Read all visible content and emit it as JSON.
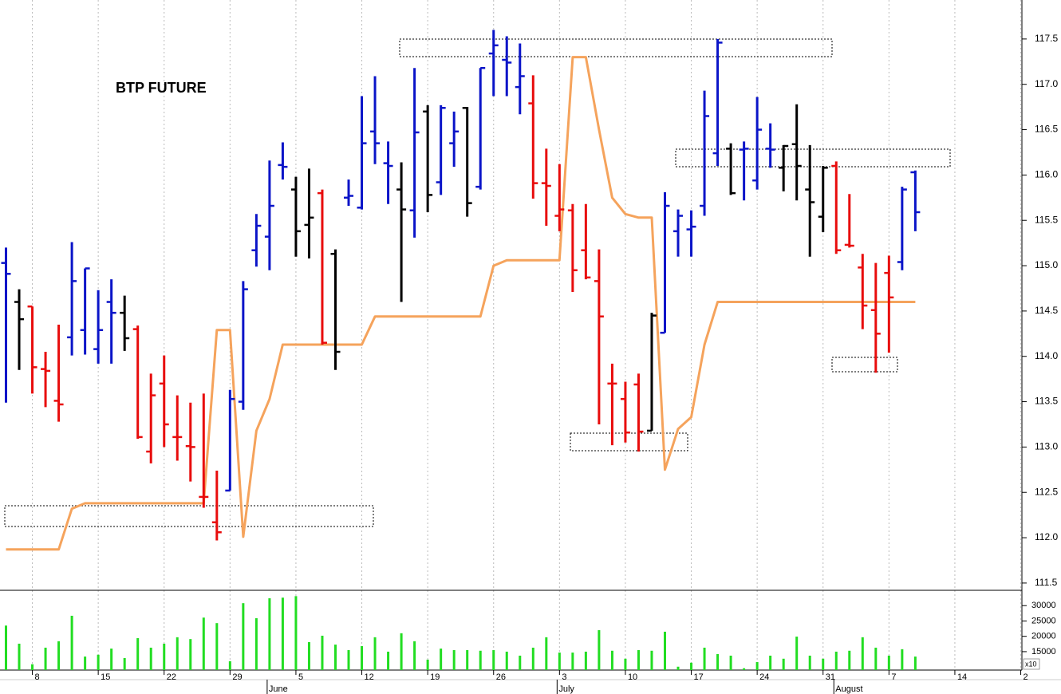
{
  "chart_data": {
    "type": "ohlc",
    "title": "BTP FUTURE",
    "categories": [
      null,
      null,
      "8",
      null,
      null,
      null,
      null,
      "15",
      null,
      null,
      null,
      null,
      "22",
      null,
      null,
      null,
      null,
      "29",
      null,
      null,
      null,
      null,
      "5",
      null,
      null,
      null,
      null,
      "12",
      null,
      null,
      null,
      null,
      "19",
      null,
      null,
      null,
      null,
      "26",
      null,
      null,
      null,
      null,
      "3",
      null,
      null,
      null,
      null,
      "10",
      null,
      null,
      null,
      null,
      "17",
      null,
      null,
      null,
      null,
      "24",
      null,
      null,
      null,
      null,
      "31",
      null,
      null,
      null,
      null,
      "7",
      null,
      null,
      null,
      null,
      "14",
      null,
      null,
      null,
      null,
      "2"
    ],
    "months": [
      null,
      null,
      null,
      null,
      null,
      null,
      null,
      null,
      null,
      null,
      null,
      null,
      null,
      null,
      null,
      null,
      null,
      null,
      null,
      null,
      "June",
      null,
      null,
      null,
      null,
      null,
      null,
      null,
      null,
      null,
      null,
      null,
      null,
      null,
      null,
      null,
      null,
      null,
      null,
      null,
      null,
      null,
      "July",
      null,
      null,
      null,
      null,
      null,
      null,
      null,
      null,
      null,
      null,
      null,
      null,
      null,
      null,
      null,
      null,
      null,
      null,
      null,
      null,
      "August",
      null,
      null,
      null,
      null,
      null,
      null,
      null,
      null,
      null,
      null,
      null,
      null,
      null,
      null
    ],
    "ohlc": {
      "open": [
        115.03,
        114.6,
        114.55,
        113.86,
        113.51,
        114.21,
        114.29,
        114.08,
        114.6,
        114.48,
        114.3,
        112.95,
        113.7,
        113.11,
        113.01,
        112.45,
        112.17,
        112.52,
        113.5,
        115.17,
        115.32,
        116.11,
        115.84,
        115.45,
        115.8,
        115.13,
        115.75,
        115.64,
        116.48,
        116.13,
        115.84,
        115.61,
        116.7,
        115.92,
        116.35,
        116.74,
        115.87,
        117.34,
        117.27,
        116.97,
        116.79,
        115.91,
        115.55,
        115.61,
        115.17,
        114.83,
        113.7,
        113.53,
        113.69,
        113.18,
        114.26,
        115.38,
        115.4,
        115.66,
        116.24,
        116.29,
        116.28,
        115.94,
        116.29,
        116.08,
        116.34,
        115.84,
        115.54,
        116.1,
        115.23,
        114.98,
        114.51,
        114.92,
        115.04,
        116.03,
        null,
        null,
        null,
        null,
        null,
        null,
        null,
        null
      ],
      "high": [
        115.2,
        114.74,
        114.55,
        114.05,
        114.35,
        115.26,
        114.97,
        114.73,
        114.85,
        114.67,
        114.34,
        113.81,
        114.01,
        113.57,
        113.49,
        113.59,
        112.74,
        113.63,
        114.83,
        115.57,
        116.16,
        116.36,
        115.98,
        116.07,
        115.84,
        115.18,
        115.95,
        116.87,
        117.09,
        116.37,
        116.14,
        117.18,
        116.77,
        116.77,
        116.7,
        116.75,
        117.18,
        117.6,
        117.53,
        117.45,
        117.1,
        116.29,
        116.12,
        115.68,
        115.68,
        115.18,
        113.92,
        113.72,
        113.81,
        114.48,
        115.81,
        115.62,
        115.61,
        116.93,
        117.5,
        116.35,
        116.37,
        116.86,
        116.57,
        116.33,
        116.78,
        116.33,
        116.1,
        116.15,
        115.79,
        115.13,
        115.03,
        115.11,
        115.87,
        116.05,
        null,
        null,
        null,
        null,
        null,
        null,
        null,
        null
      ],
      "low": [
        113.49,
        113.85,
        113.59,
        113.44,
        113.28,
        114.01,
        114.02,
        113.92,
        113.92,
        114.06,
        113.09,
        112.82,
        113.0,
        112.85,
        112.62,
        112.33,
        111.97,
        112.52,
        113.41,
        114.99,
        114.95,
        115.95,
        115.1,
        115.08,
        114.13,
        113.85,
        115.66,
        115.62,
        116.12,
        115.68,
        114.6,
        115.31,
        115.59,
        115.78,
        116.09,
        115.54,
        115.84,
        116.87,
        116.87,
        116.67,
        115.74,
        115.44,
        115.38,
        114.71,
        114.85,
        113.25,
        113.02,
        113.05,
        112.95,
        113.18,
        114.26,
        115.1,
        115.1,
        115.55,
        116.1,
        115.78,
        115.72,
        115.84,
        116.08,
        115.82,
        115.72,
        115.1,
        115.37,
        115.13,
        115.2,
        114.3,
        113.82,
        114.04,
        114.95,
        115.38,
        null,
        null,
        null,
        null,
        null,
        null,
        null,
        null
      ],
      "close": [
        114.91,
        114.41,
        113.88,
        113.84,
        113.47,
        114.83,
        114.97,
        114.29,
        114.48,
        114.2,
        113.11,
        113.57,
        113.25,
        113.11,
        113.0,
        112.45,
        112.06,
        113.53,
        114.74,
        115.44,
        115.66,
        116.09,
        115.38,
        115.53,
        114.15,
        114.05,
        115.77,
        116.35,
        116.35,
        116.1,
        115.62,
        116.47,
        115.78,
        116.74,
        116.48,
        115.69,
        117.18,
        117.43,
        117.24,
        117.09,
        115.91,
        115.88,
        115.62,
        114.95,
        114.87,
        114.44,
        113.7,
        113.16,
        113.17,
        114.45,
        115.66,
        115.55,
        115.43,
        116.65,
        117.46,
        115.8,
        116.29,
        116.5,
        116.28,
        116.32,
        116.1,
        115.7,
        116.08,
        115.17,
        115.22,
        114.56,
        114.25,
        114.65,
        115.84,
        115.59,
        null,
        null,
        null,
        null,
        null,
        null,
        null,
        null
      ],
      "colors": [
        "#0a14c8",
        "#000000",
        "#e80c0c",
        "#e80c0c",
        "#e80c0c",
        "#0a14c8",
        "#0a14c8",
        "#0a14c8",
        "#0a14c8",
        "#000000",
        "#e80c0c",
        "#e80c0c",
        "#e80c0c",
        "#e80c0c",
        "#e80c0c",
        "#e80c0c",
        "#e80c0c",
        "#0a14c8",
        "#0a14c8",
        "#0a14c8",
        "#0a14c8",
        "#0a14c8",
        "#000000",
        "#000000",
        "#e80c0c",
        "#000000",
        "#0a14c8",
        "#0a14c8",
        "#0a14c8",
        "#0a14c8",
        "#000000",
        "#0a14c8",
        "#000000",
        "#0a14c8",
        "#0a14c8",
        "#000000",
        "#0a14c8",
        "#0a14c8",
        "#0a14c8",
        "#0a14c8",
        "#e80c0c",
        "#e80c0c",
        "#e80c0c",
        "#e80c0c",
        "#e80c0c",
        "#e80c0c",
        "#e80c0c",
        "#e80c0c",
        "#e80c0c",
        "#000000",
        "#0a14c8",
        "#0a14c8",
        "#0a14c8",
        "#0a14c8",
        "#0a14c8",
        "#000000",
        "#0a14c8",
        "#0a14c8",
        "#0a14c8",
        "#000000",
        "#000000",
        "#000000",
        "#000000",
        "#e80c0c",
        "#e80c0c",
        "#e80c0c",
        "#e80c0c",
        "#e80c0c",
        "#0a14c8",
        "#0a14c8",
        null,
        null,
        null,
        null,
        null,
        null,
        null,
        null
      ]
    },
    "line": {
      "color": "#f5a35c",
      "values": [
        111.87,
        111.87,
        111.87,
        111.87,
        111.87,
        112.32,
        112.38,
        112.38,
        112.38,
        112.38,
        112.38,
        112.38,
        112.38,
        112.38,
        112.38,
        112.38,
        114.29,
        114.29,
        112.01,
        113.18,
        113.53,
        114.13,
        114.13,
        114.13,
        114.13,
        114.13,
        114.13,
        114.13,
        114.44,
        114.44,
        114.44,
        114.44,
        114.44,
        114.44,
        114.44,
        114.44,
        114.44,
        115.0,
        115.06,
        115.06,
        115.06,
        115.06,
        115.06,
        117.3,
        117.3,
        116.5,
        115.75,
        115.57,
        115.53,
        115.53,
        112.75,
        113.2,
        113.33,
        114.13,
        114.6,
        114.6,
        114.6,
        114.6,
        114.6,
        114.6,
        114.6,
        114.6,
        114.6,
        114.6,
        114.6,
        114.6,
        114.6,
        114.6,
        114.6,
        114.6,
        null,
        null,
        null,
        null,
        null,
        null,
        null,
        null
      ]
    },
    "ylim": [
      111.42,
      117.93
    ],
    "yticks": [
      111.5,
      {
        "value": 112,
        "label": "112.0"
      },
      112.5,
      {
        "value": 113,
        "label": "113.0"
      },
      113.5,
      {
        "value": 114,
        "label": "114.0"
      },
      114.5,
      {
        "value": 115,
        "label": "115.0"
      },
      115.5,
      {
        "value": 116,
        "label": "116.0"
      },
      116.5,
      {
        "value": 117,
        "label": "117.0"
      },
      117.5
    ],
    "grid": true,
    "volume": {
      "color": "#22dd22",
      "values": [
        23500,
        17600,
        10900,
        16300,
        18400,
        26700,
        13400,
        14000,
        16000,
        12900,
        19400,
        16300,
        17600,
        19700,
        19100,
        26100,
        24300,
        11900,
        30800,
        25900,
        32400,
        32600,
        33100,
        18100,
        20200,
        17300,
        15500,
        16800,
        19700,
        15000,
        21000,
        18400,
        12400,
        16000,
        15500,
        15500,
        15300,
        15500,
        15000,
        13700,
        16300,
        19700,
        14700,
        14700,
        15000,
        22000,
        15300,
        12700,
        15500,
        15300,
        21500,
        10100,
        11400,
        16300,
        14200,
        13700,
        9600,
        11600,
        13700,
        12700,
        19900,
        13700,
        12700,
        15000,
        15300,
        19700,
        16300,
        13700,
        15800,
        13400,
        null,
        null,
        null,
        null,
        null,
        null,
        null,
        null
      ],
      "ylim": [
        9000,
        35000
      ],
      "yticks": [
        15000,
        20000,
        25000,
        30000
      ],
      "multiplier_label": "x10"
    }
  }
}
